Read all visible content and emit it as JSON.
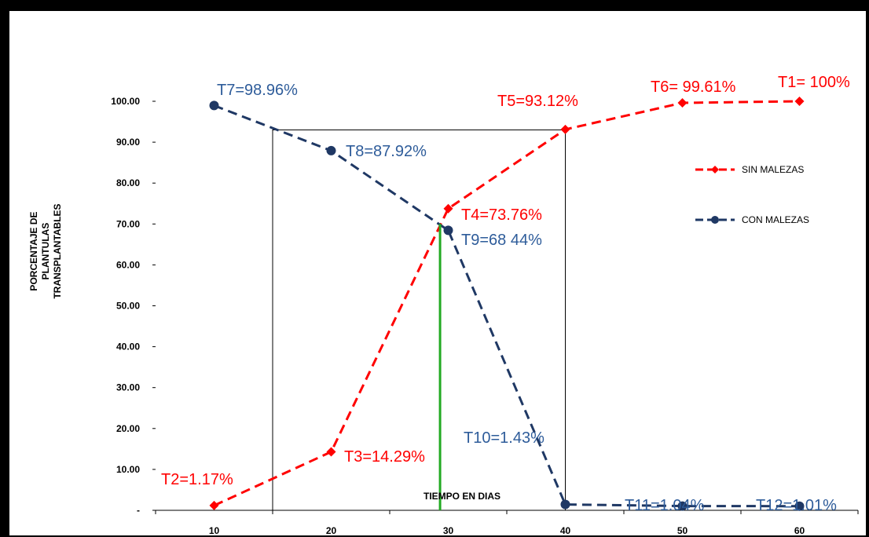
{
  "chart_data": {
    "type": "line",
    "title": "",
    "xlabel": "TIEMPO EN DIAS",
    "ylabel_lines": [
      "PORCENTAJE DE",
      "PLANTULAS",
      "TRANSPLANTABLES"
    ],
    "x": [
      10,
      20,
      30,
      40,
      50,
      60
    ],
    "x_tick_labels": [
      "10",
      "20",
      "30",
      "40",
      "50",
      "60"
    ],
    "ylim": [
      0,
      100
    ],
    "y_tick_values": [
      0,
      10,
      20,
      30,
      40,
      50,
      60,
      70,
      80,
      90,
      100
    ],
    "y_tick_labels": [
      "-",
      "10.00",
      "20.00",
      "30.00",
      "40.00",
      "50.00",
      "60.00",
      "70.00",
      "80.00",
      "90.00",
      "100.00"
    ],
    "grid": false,
    "legend_position": "right",
    "series": [
      {
        "name": "SIN MALEZAS",
        "color": "#ff0000",
        "marker": "diamond",
        "line_style": "dashed",
        "values": [
          1.17,
          14.29,
          73.76,
          93.12,
          99.61,
          100
        ]
      },
      {
        "name": "CON MALEZAS",
        "color": "#1f3864",
        "marker": "circle",
        "line_style": "dashed",
        "values": [
          98.96,
          87.92,
          68.44,
          1.43,
          1.04,
          1.01
        ]
      }
    ],
    "annotations": [
      {
        "text": "T2=1.17%",
        "color": "#ff0000"
      },
      {
        "text": "T3=14.29%",
        "color": "#ff0000"
      },
      {
        "text": "T4=73.76%",
        "color": "#ff0000"
      },
      {
        "text": "T5=93.12%",
        "color": "#ff0000"
      },
      {
        "text": "T6= 99.61%",
        "color": "#ff0000"
      },
      {
        "text": "T1= 100%",
        "color": "#ff0000"
      },
      {
        "text": "T7=98.96%",
        "color": "#2e5c9a"
      },
      {
        "text": "T8=87.92%",
        "color": "#2e5c9a"
      },
      {
        "text": "T9=68 44%",
        "color": "#2e5c9a"
      },
      {
        "text": "T10=1.43%",
        "color": "#2e5c9a"
      },
      {
        "text": "T11=1.04%",
        "color": "#2e5c9a"
      },
      {
        "text": "T12=1.01%",
        "color": "#2e5c9a"
      }
    ],
    "box_x_range": [
      15,
      40
    ],
    "box_y_range": [
      0,
      93
    ],
    "vertical_line": {
      "x": 29.3,
      "y_range": [
        0,
        70
      ],
      "color": "#22aa22"
    }
  }
}
